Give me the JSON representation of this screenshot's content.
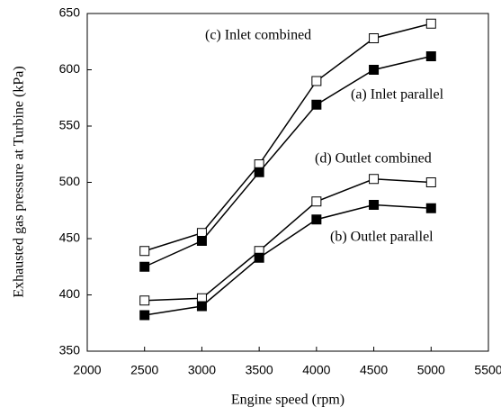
{
  "chart_data": {
    "type": "line",
    "xlabel": "Engine speed (rpm)",
    "ylabel": "Exhausted gas pressure at Turbine (kPa)",
    "x": [
      2500,
      3000,
      3500,
      4000,
      4500,
      5000
    ],
    "series": [
      {
        "name": "(c) Inlet combined",
        "color": "#000000",
        "marker": "open",
        "values": [
          439,
          455,
          516,
          590,
          628,
          641
        ]
      },
      {
        "name": "(a) Inlet parallel",
        "color": "#000000",
        "marker": "filled",
        "values": [
          425,
          448,
          509,
          569,
          600,
          612
        ]
      },
      {
        "name": "(d) Outlet combined",
        "color": "#000000",
        "marker": "open",
        "values": [
          395,
          397,
          439,
          483,
          503,
          500
        ]
      },
      {
        "name": "(b) Outlet parallel",
        "color": "#000000",
        "marker": "filled",
        "values": [
          382,
          390,
          433,
          467,
          480,
          477
        ]
      }
    ],
    "xlim": [
      2000,
      5500
    ],
    "xticks": [
      2000,
      2500,
      3000,
      3500,
      4000,
      4500,
      5000,
      5500
    ],
    "ylim": [
      350,
      650
    ],
    "yticks": [
      350,
      400,
      450,
      500,
      550,
      600,
      650
    ],
    "grid": false
  }
}
